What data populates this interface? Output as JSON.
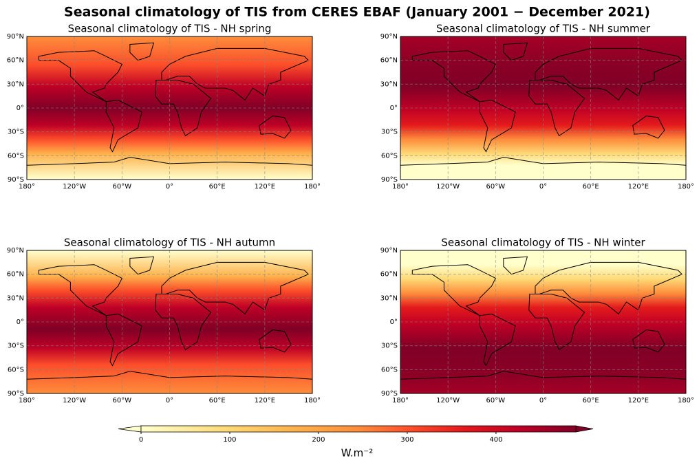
{
  "title": "Seasonal climatology of TIS from CERES EBAF (January 2001 − December 2021)",
  "panels": [
    {
      "title": "Seasonal climatology of TIS - NH spring"
    },
    {
      "title": "Seasonal climatology of TIS - NH summer"
    },
    {
      "title": "Seasonal climatology of TIS - NH autumn"
    },
    {
      "title": "Seasonal climatology of TIS - NH winter"
    }
  ],
  "xlim": [
    -180,
    180
  ],
  "ylim": [
    -90,
    90
  ],
  "xticks": [
    {
      "value": -180,
      "label": "180°"
    },
    {
      "value": -120,
      "label": "120°W"
    },
    {
      "value": -60,
      "label": "60°W"
    },
    {
      "value": 0,
      "label": "0°"
    },
    {
      "value": 60,
      "label": "60°E"
    },
    {
      "value": 120,
      "label": "120°E"
    },
    {
      "value": 180,
      "label": "180°"
    }
  ],
  "yticks": [
    {
      "value": -90,
      "label": "90°S"
    },
    {
      "value": -60,
      "label": "60°S"
    },
    {
      "value": -30,
      "label": "30°S"
    },
    {
      "value": 0,
      "label": "0°"
    },
    {
      "value": 30,
      "label": "30°N"
    },
    {
      "value": 60,
      "label": "60°N"
    },
    {
      "value": 90,
      "label": "90°N"
    }
  ],
  "colorbar": {
    "label": "W.m⁻²",
    "clim": [
      0,
      490
    ],
    "ticks": [
      0,
      100,
      200,
      300,
      400
    ]
  }
}
